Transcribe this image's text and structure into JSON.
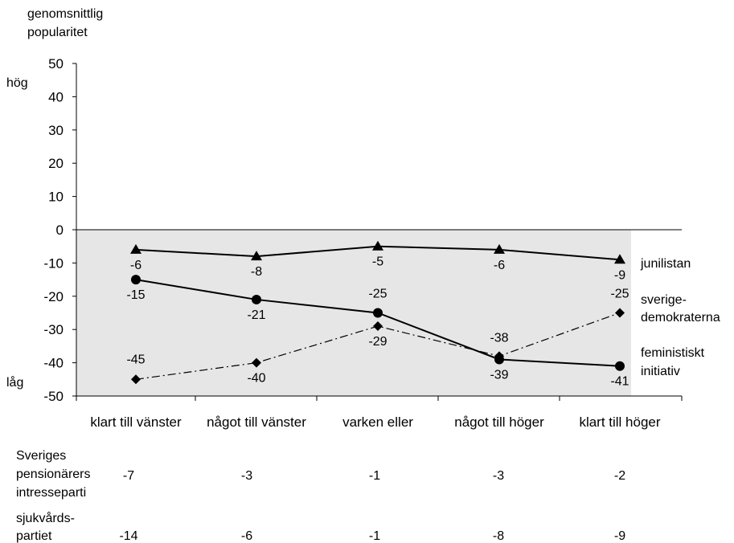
{
  "chart_data": {
    "type": "line",
    "ylabel_lines": [
      "genomsnittlig",
      "popularitet"
    ],
    "y_high_label": "hög",
    "y_low_label": "låg",
    "ylim": [
      -50,
      50
    ],
    "yticks": [
      50,
      40,
      30,
      20,
      10,
      0,
      -10,
      -20,
      -30,
      -40,
      -50
    ],
    "categories": [
      "klart till vänster",
      "något till vänster",
      "varken eller",
      "något till höger",
      "klart till höger"
    ],
    "grid": false,
    "negative_region_shaded": true,
    "series": [
      {
        "name_lines": [
          "junilistan"
        ],
        "marker": "triangle",
        "style": "solid",
        "values": [
          -6,
          -8,
          -5,
          -6,
          -9
        ]
      },
      {
        "name_lines": [
          "sverige-",
          "demokraterna"
        ],
        "marker": "diamond",
        "style": "dash-dot",
        "values": [
          -45,
          -40,
          -29,
          -38,
          -25
        ]
      },
      {
        "name_lines": [
          "feministiskt",
          "initiativ"
        ],
        "marker": "circle",
        "style": "solid",
        "values": [
          -15,
          -21,
          -25,
          -39,
          -41
        ]
      }
    ],
    "table_rows": [
      {
        "label_lines": [
          "Sveriges",
          "pensionärers",
          "intresseparti"
        ],
        "values": [
          "-7",
          "-3",
          "-1",
          "-3",
          "-2"
        ]
      },
      {
        "label_lines": [
          "sjukvårds-",
          "partiet"
        ],
        "values": [
          "-14",
          "-6",
          "-1",
          "-8",
          "-9"
        ]
      }
    ]
  }
}
